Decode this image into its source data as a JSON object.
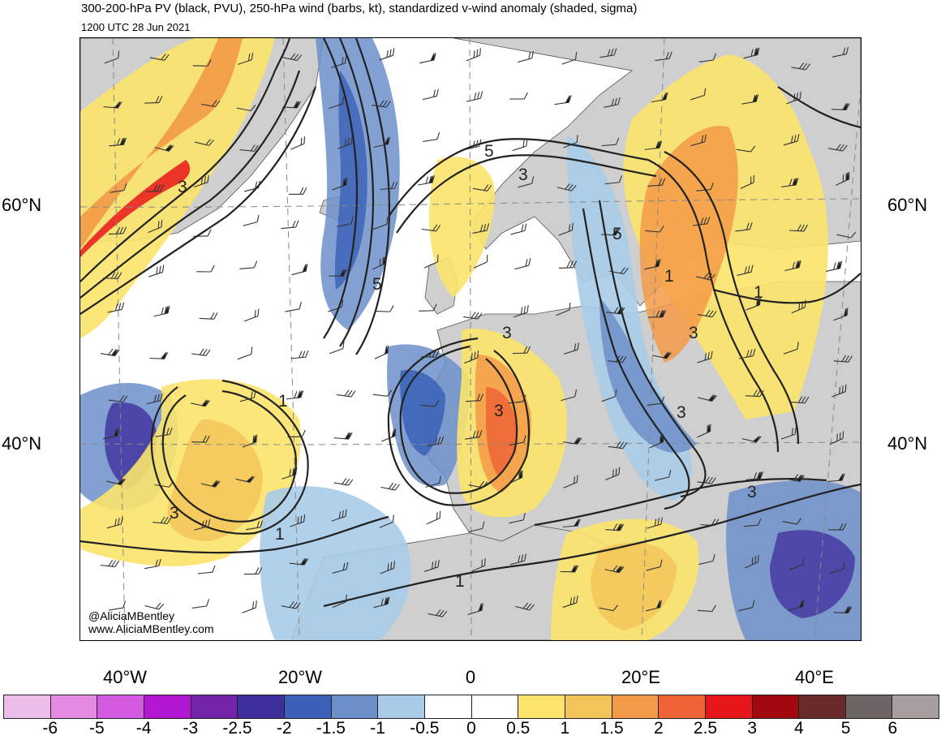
{
  "header": {
    "title": "300-200-hPa PV (black, PVU), 250-hPa wind (barbs, kt), standardized v-wind anomaly (shaded, sigma)",
    "subtitle": "1200 UTC 28 Jun 2021"
  },
  "map": {
    "lat_labels": [
      "60°N",
      "40°N"
    ],
    "lon_labels": [
      "40°W",
      "20°W",
      "0",
      "20°E",
      "40°E"
    ],
    "pv_contour_labels": [
      "3",
      "5",
      "3",
      "5",
      "3",
      "3",
      "1",
      "3",
      "3",
      "1",
      "3",
      "5",
      "1",
      "1",
      "3",
      "1"
    ],
    "credit": [
      "@AliciaMBentley",
      "www.AliciaMBentley.com"
    ]
  },
  "colorbar": {
    "colors": [
      "#ecbde8",
      "#e58ae3",
      "#d15ae0",
      "#b116d0",
      "#7424a8",
      "#3f2f9d",
      "#3a60b8",
      "#6d8fca",
      "#a9cbe7",
      "#ffffff",
      "#ffffff",
      "#fbe36c",
      "#f3c45a",
      "#f39a48",
      "#ef6436",
      "#e7161b",
      "#a0080e",
      "#6b2a2a",
      "#6e6464",
      "#a89e9e"
    ],
    "labels": [
      "-6",
      "-5",
      "-4",
      "-3",
      "-2.5",
      "-2",
      "-1.5",
      "-1",
      "-0.5",
      "0",
      "0.5",
      "1",
      "1.5",
      "2",
      "2.5",
      "3",
      "4",
      "5",
      "6"
    ]
  },
  "colors": {
    "land": "#cfcfcf",
    "pv_contour": "#222222"
  }
}
